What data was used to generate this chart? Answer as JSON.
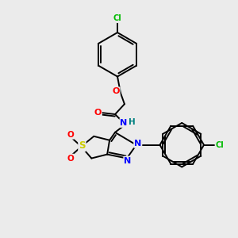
{
  "background_color": "#ebebeb",
  "bond_color": "#000000",
  "atom_colors": {
    "O": "#ff0000",
    "N": "#0000ff",
    "S": "#cccc00",
    "Cl": "#00bb00",
    "C": "#000000",
    "H": "#008080"
  },
  "figsize": [
    3.0,
    3.0
  ],
  "dpi": 100
}
